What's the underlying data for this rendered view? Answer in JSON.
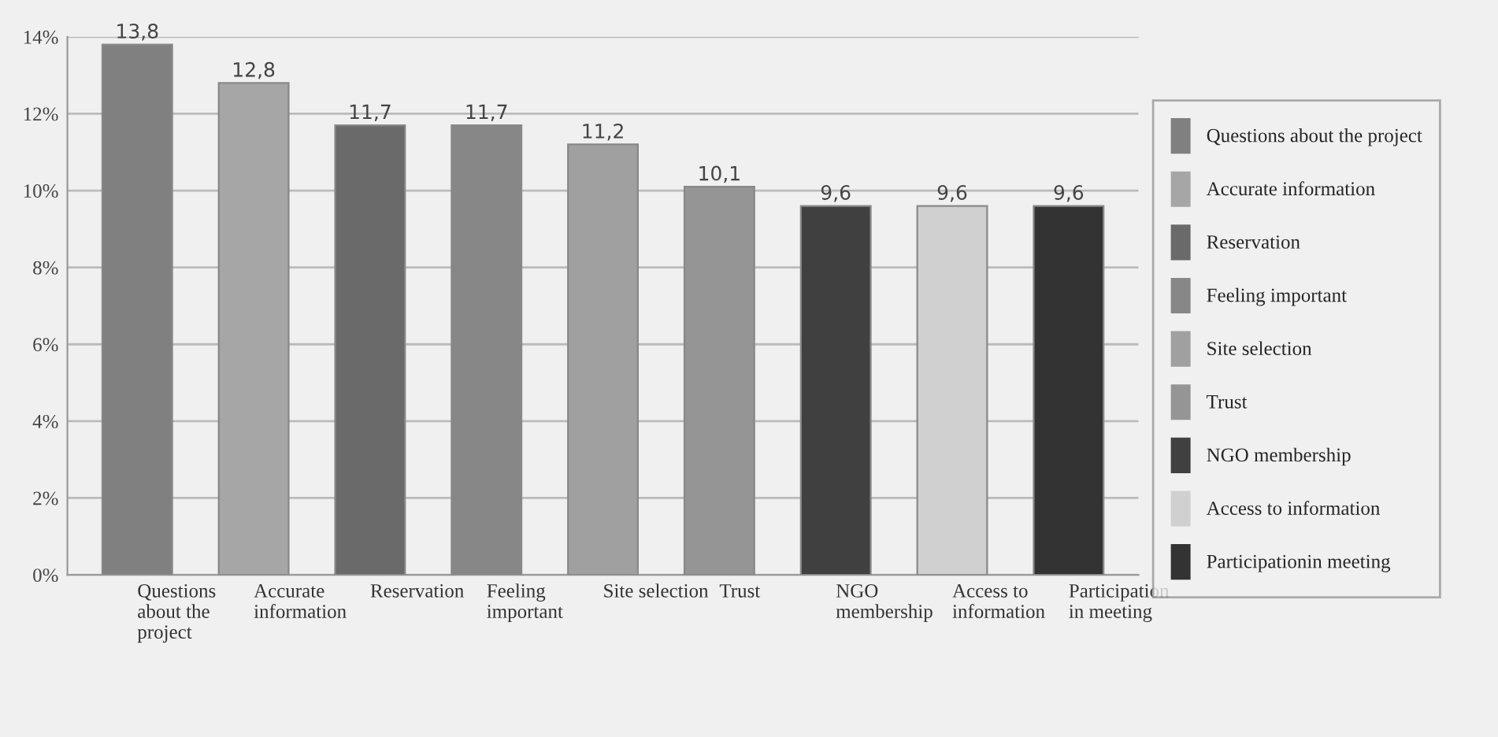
{
  "chart_data": {
    "type": "bar",
    "categories": [
      "Questions\nabout the\nproject",
      "Accurate\ninformation",
      "Reservation",
      "Feeling\nimportant",
      "Site selection",
      "Trust",
      "NGO\nmembership",
      "Access to\ninformation",
      "Participation\nin meeting"
    ],
    "series": [
      {
        "name": "Questions about the project",
        "color": "#808080",
        "values": [
          13.8,
          null,
          null,
          null,
          null,
          null,
          null,
          null,
          null
        ],
        "value_labels": [
          "13,8",
          null,
          null,
          null,
          null,
          null,
          null,
          null,
          null
        ]
      },
      {
        "name": "Accurate information",
        "color": "#a6a6a6",
        "values": [
          null,
          12.8,
          null,
          null,
          null,
          null,
          null,
          null,
          null
        ],
        "value_labels": [
          null,
          "12,8",
          null,
          null,
          null,
          null,
          null,
          null,
          null
        ]
      },
      {
        "name": "Reservation",
        "color": "#6a6a6a",
        "values": [
          null,
          null,
          11.7,
          null,
          null,
          null,
          null,
          null,
          null
        ],
        "value_labels": [
          null,
          null,
          "11,7",
          null,
          null,
          null,
          null,
          null,
          null
        ]
      },
      {
        "name": "Feeling important",
        "color": "#878787",
        "values": [
          null,
          null,
          null,
          11.7,
          null,
          null,
          null,
          null,
          null
        ],
        "value_labels": [
          null,
          null,
          null,
          "11,7",
          null,
          null,
          null,
          null,
          null
        ]
      },
      {
        "name": "Site selection",
        "color": "#a0a0a0",
        "values": [
          null,
          null,
          null,
          null,
          11.2,
          null,
          null,
          null,
          null
        ],
        "value_labels": [
          null,
          null,
          null,
          null,
          "11,2",
          null,
          null,
          null,
          null
        ]
      },
      {
        "name": "Trust",
        "color": "#959595",
        "values": [
          null,
          null,
          null,
          null,
          null,
          10.1,
          null,
          null,
          null
        ],
        "value_labels": [
          null,
          null,
          null,
          null,
          null,
          "10,1",
          null,
          null,
          null
        ]
      },
      {
        "name": "NGO membership",
        "color": "#404040",
        "values": [
          null,
          null,
          null,
          null,
          null,
          null,
          9.6,
          null,
          null
        ],
        "value_labels": [
          null,
          null,
          null,
          null,
          null,
          null,
          "9,6",
          null,
          null
        ]
      },
      {
        "name": "Access to information",
        "color": "#d0d0d0",
        "values": [
          null,
          null,
          null,
          null,
          null,
          null,
          null,
          9.6,
          null
        ],
        "value_labels": [
          null,
          null,
          null,
          null,
          null,
          null,
          null,
          "9,6",
          null
        ]
      },
      {
        "name": "Participationin meeting",
        "color": "#333333",
        "values": [
          null,
          null,
          null,
          null,
          null,
          null,
          null,
          null,
          9.6
        ],
        "value_labels": [
          null,
          null,
          null,
          null,
          null,
          null,
          null,
          null,
          "9,6"
        ]
      }
    ],
    "ylim": [
      0,
      14
    ],
    "yticks": [
      {
        "value": 0,
        "label": "0%"
      },
      {
        "value": 2,
        "label": "2%"
      },
      {
        "value": 4,
        "label": "4%"
      },
      {
        "value": 6,
        "label": "6%"
      },
      {
        "value": 8,
        "label": "8%"
      },
      {
        "value": 10,
        "label": "10%"
      },
      {
        "value": 12,
        "label": "12%"
      },
      {
        "value": 14,
        "label": "14%"
      }
    ],
    "grid": "y",
    "legend": "right"
  }
}
